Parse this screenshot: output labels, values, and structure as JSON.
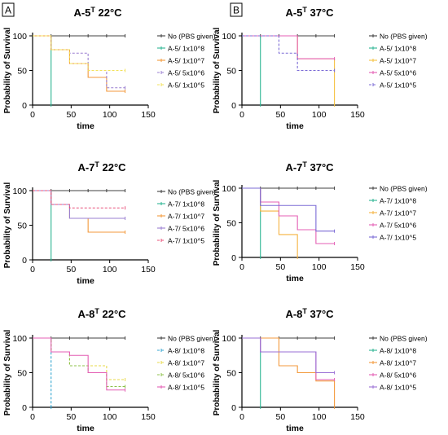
{
  "chart_data": [
    {
      "type": "line",
      "step": true,
      "panel_letter": "A",
      "title": "A-5",
      "title_sup": "T",
      "title_suffix": " 22°C",
      "xlabel": "time",
      "ylabel": "Probability of Survival",
      "xlim": [
        0,
        150
      ],
      "ylim": [
        0,
        100
      ],
      "xticks": [
        0,
        50,
        100,
        150
      ],
      "yticks": [
        0,
        50,
        100
      ],
      "legend_position": "right",
      "series": [
        {
          "name": "No (PBS given)",
          "color": "#404040",
          "dash": false,
          "x": [
            0,
            120
          ],
          "y": [
            100,
            100
          ],
          "ticks": [
            24,
            48,
            72,
            96
          ]
        },
        {
          "name": "A-5/ 1x10^8",
          "color": "#2db593",
          "dash": false,
          "x": [
            0,
            24,
            24
          ],
          "y": [
            100,
            100,
            0
          ],
          "ticks": []
        },
        {
          "name": "A-5/ 1x10^7",
          "color": "#f39a3c",
          "dash": false,
          "x": [
            0,
            24,
            48,
            72,
            96,
            120
          ],
          "y": [
            100,
            80,
            60,
            40,
            20,
            20
          ],
          "ticks": []
        },
        {
          "name": "A-5/ 5x10^6",
          "color": "#9a7fd1",
          "dash": true,
          "x": [
            0,
            24,
            48,
            72,
            96,
            120
          ],
          "y": [
            100,
            80,
            75,
            50,
            25,
            25
          ],
          "ticks": []
        },
        {
          "name": "A-5/ 1x10^5",
          "color": "#f3e15a",
          "dash": true,
          "x": [
            0,
            24,
            48,
            72,
            96,
            120
          ],
          "y": [
            100,
            80,
            60,
            50,
            50,
            50
          ],
          "ticks": []
        }
      ]
    },
    {
      "type": "line",
      "step": true,
      "panel_letter": "B",
      "title": "A-5",
      "title_sup": "T",
      "title_suffix": " 37°C",
      "xlabel": "time",
      "ylabel": "Probability of Survival",
      "xlim": [
        0,
        150
      ],
      "ylim": [
        0,
        100
      ],
      "xticks": [
        0,
        50,
        100,
        150
      ],
      "yticks": [
        0,
        50,
        100
      ],
      "legend_position": "right",
      "series": [
        {
          "name": "No (PBS given)",
          "color": "#404040",
          "dash": false,
          "x": [
            0,
            120
          ],
          "y": [
            100,
            100
          ],
          "ticks": [
            24,
            48,
            72,
            96
          ]
        },
        {
          "name": "A-5/ 1x10^8",
          "color": "#2db593",
          "dash": false,
          "x": [
            0,
            24,
            24
          ],
          "y": [
            100,
            100,
            0
          ],
          "ticks": []
        },
        {
          "name": "A-5/ 1x10^7",
          "color": "#f5c242",
          "dash": false,
          "x": [
            0,
            72,
            120,
            120
          ],
          "y": [
            100,
            67,
            67,
            0
          ],
          "ticks": []
        },
        {
          "name": "A-5/ 5x10^6",
          "color": "#e45fb4",
          "dash": false,
          "x": [
            0,
            72,
            120
          ],
          "y": [
            100,
            67,
            67
          ],
          "ticks": []
        },
        {
          "name": "A-5/ 1x10^5",
          "color": "#7b6bd6",
          "dash": true,
          "x": [
            0,
            48,
            72,
            120
          ],
          "y": [
            100,
            75,
            50,
            50
          ],
          "ticks": []
        }
      ]
    },
    {
      "type": "line",
      "step": true,
      "title": "A-7",
      "title_sup": "T",
      "title_suffix": " 22°C",
      "xlabel": "time",
      "ylabel": "Probability of Survival",
      "xlim": [
        0,
        150
      ],
      "ylim": [
        0,
        100
      ],
      "xticks": [
        0,
        50,
        100,
        150
      ],
      "yticks": [
        0,
        50,
        100
      ],
      "legend_position": "right",
      "series": [
        {
          "name": "No (PBS given)",
          "color": "#404040",
          "dash": false,
          "x": [
            0,
            120
          ],
          "y": [
            100,
            100
          ],
          "ticks": [
            24,
            48,
            72,
            96
          ]
        },
        {
          "name": "A-7/ 1x10^8",
          "color": "#2db593",
          "dash": false,
          "x": [
            0,
            24,
            24
          ],
          "y": [
            100,
            100,
            0
          ],
          "ticks": []
        },
        {
          "name": "A-7/ 1x10^7",
          "color": "#f39a3c",
          "dash": false,
          "x": [
            0,
            24,
            48,
            72,
            120
          ],
          "y": [
            100,
            80,
            60,
            40,
            40
          ],
          "ticks": []
        },
        {
          "name": "A-7/ 5x10^6",
          "color": "#9a7fd1",
          "dash": false,
          "x": [
            0,
            24,
            48,
            120
          ],
          "y": [
            100,
            80,
            60,
            60
          ],
          "ticks": []
        },
        {
          "name": "A-7/ 1x10^5",
          "color": "#e8507a",
          "dash": true,
          "x": [
            0,
            24,
            48,
            120
          ],
          "y": [
            100,
            80,
            75,
            75
          ],
          "ticks": []
        }
      ]
    },
    {
      "type": "line",
      "step": true,
      "title": "A-7",
      "title_sup": "T",
      "title_suffix": " 37°C",
      "xlabel": "time",
      "ylabel": "Probability of Survival",
      "xlim": [
        0,
        150
      ],
      "ylim": [
        0,
        100
      ],
      "xticks": [
        0,
        50,
        100,
        150
      ],
      "yticks": [
        0,
        50,
        100
      ],
      "legend_position": "right",
      "series": [
        {
          "name": "No (PBS given)",
          "color": "#404040",
          "dash": false,
          "x": [
            0,
            120
          ],
          "y": [
            100,
            100
          ],
          "ticks": [
            24,
            48,
            72,
            96
          ]
        },
        {
          "name": "A-7/ 1x10^8",
          "color": "#2db593",
          "dash": false,
          "x": [
            0,
            24,
            24
          ],
          "y": [
            100,
            100,
            0
          ],
          "ticks": []
        },
        {
          "name": "A-7/ 1x10^7",
          "color": "#f5b342",
          "dash": false,
          "x": [
            0,
            24,
            48,
            72,
            72
          ],
          "y": [
            100,
            67,
            33,
            33,
            0
          ],
          "ticks": []
        },
        {
          "name": "A-7/ 5x10^6",
          "color": "#e45fb4",
          "dash": false,
          "x": [
            0,
            24,
            48,
            72,
            96,
            120
          ],
          "y": [
            100,
            80,
            60,
            40,
            20,
            20
          ],
          "ticks": []
        },
        {
          "name": "A-7/ 1x10^5",
          "color": "#7b6bd6",
          "dash": false,
          "x": [
            0,
            24,
            96,
            120
          ],
          "y": [
            100,
            75,
            38,
            38
          ],
          "ticks": []
        }
      ]
    },
    {
      "type": "line",
      "step": true,
      "title": "A-8",
      "title_sup": "T",
      "title_suffix": " 22°C",
      "xlabel": "time",
      "ylabel": "Probability of Survival",
      "xlim": [
        0,
        150
      ],
      "ylim": [
        0,
        100
      ],
      "xticks": [
        0,
        50,
        100,
        150
      ],
      "yticks": [
        0,
        50,
        100
      ],
      "legend_position": "right",
      "series": [
        {
          "name": "No (PBS given)",
          "color": "#404040",
          "dash": false,
          "x": [
            0,
            120
          ],
          "y": [
            100,
            100
          ],
          "ticks": [
            24,
            48,
            72,
            96
          ]
        },
        {
          "name": "A-8/ 1x10^8",
          "color": "#34a6d0",
          "dash": true,
          "x": [
            0,
            24,
            24
          ],
          "y": [
            100,
            100,
            0
          ],
          "ticks": []
        },
        {
          "name": "A-8/ 1x10^7",
          "color": "#e7d94a",
          "dash": true,
          "x": [
            0,
            24,
            48,
            72,
            96,
            120
          ],
          "y": [
            100,
            80,
            60,
            60,
            40,
            40
          ],
          "ticks": []
        },
        {
          "name": "A-8/ 5x10^6",
          "color": "#8cc24a",
          "dash": true,
          "x": [
            0,
            24,
            48,
            72,
            96,
            120
          ],
          "y": [
            100,
            80,
            60,
            50,
            30,
            30
          ],
          "ticks": []
        },
        {
          "name": "A-8/ 1x10^5",
          "color": "#e45fb4",
          "dash": false,
          "x": [
            0,
            24,
            48,
            72,
            96,
            120
          ],
          "y": [
            100,
            80,
            75,
            50,
            25,
            25
          ],
          "ticks": []
        }
      ]
    },
    {
      "type": "line",
      "step": true,
      "title": "A-8",
      "title_sup": "T",
      "title_suffix": " 37°C",
      "xlabel": "time",
      "ylabel": "Probability of Survival",
      "xlim": [
        0,
        150
      ],
      "ylim": [
        0,
        100
      ],
      "xticks": [
        0,
        50,
        100,
        150
      ],
      "yticks": [
        0,
        50,
        100
      ],
      "legend_position": "right",
      "series": [
        {
          "name": "No (PBS given)",
          "color": "#404040",
          "dash": false,
          "x": [
            0,
            120
          ],
          "y": [
            100,
            100
          ],
          "ticks": [
            24,
            48,
            72,
            96
          ]
        },
        {
          "name": "A-8/ 1x10^8",
          "color": "#2db593",
          "dash": false,
          "x": [
            0,
            24,
            24
          ],
          "y": [
            100,
            100,
            0
          ],
          "ticks": []
        },
        {
          "name": "A-8/ 1x10^7",
          "color": "#f39a3c",
          "dash": false,
          "x": [
            0,
            48,
            72,
            96,
            120,
            120
          ],
          "y": [
            100,
            60,
            50,
            38,
            38,
            0
          ],
          "ticks": []
        },
        {
          "name": "A-8/ 5x10^6",
          "color": "#e45fb4",
          "dash": false,
          "x": [
            0,
            24,
            96,
            120
          ],
          "y": [
            100,
            80,
            40,
            40
          ],
          "ticks": []
        },
        {
          "name": "A-8/ 1x10^5",
          "color": "#9a6fd6",
          "dash": false,
          "x": [
            0,
            24,
            96,
            120
          ],
          "y": [
            100,
            80,
            50,
            50
          ],
          "ticks": []
        }
      ]
    }
  ]
}
